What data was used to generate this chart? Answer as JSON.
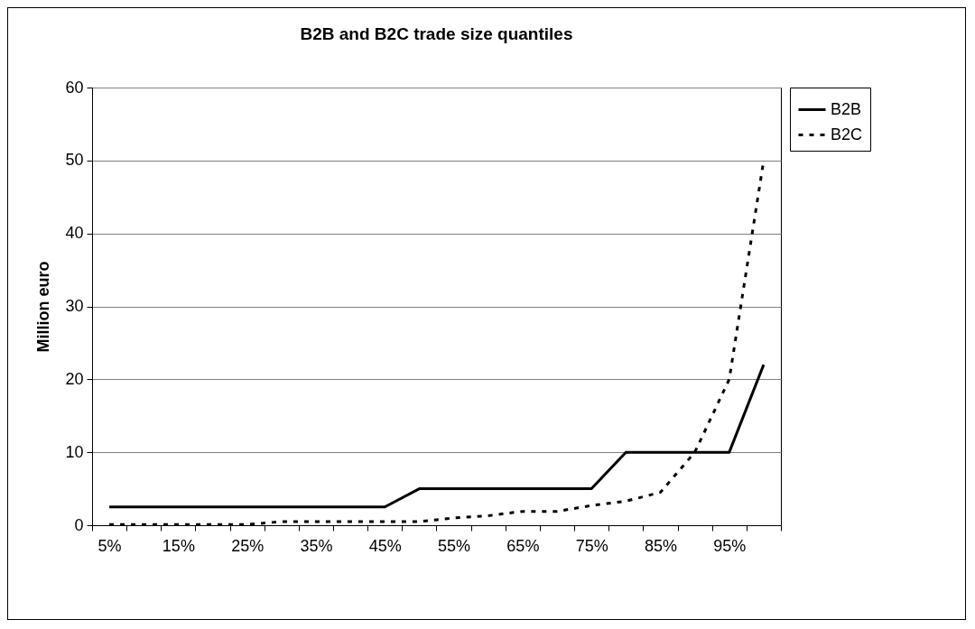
{
  "chart_data": {
    "type": "line",
    "title": "B2B and B2C trade size quantiles",
    "ylabel": "Million euro",
    "categories": [
      "5%",
      null,
      "15%",
      null,
      "25%",
      null,
      "35%",
      null,
      "45%",
      null,
      "55%",
      null,
      "65%",
      null,
      "75%",
      null,
      "85%",
      null,
      "95%",
      null
    ],
    "series": [
      {
        "name": "B2B",
        "color": "#000000",
        "line_style": "solid",
        "values": [
          2.5,
          2.5,
          2.5,
          2.5,
          2.5,
          2.5,
          2.5,
          2.5,
          2.5,
          5,
          5,
          5,
          5,
          5,
          5,
          10,
          10,
          10,
          10,
          22
        ]
      },
      {
        "name": "B2C",
        "color": "#000000",
        "line_style": "dotted",
        "values": [
          0.1,
          0.1,
          0.1,
          0.1,
          0.1,
          0.5,
          0.5,
          0.5,
          0.5,
          0.5,
          1,
          1.3,
          1.9,
          1.9,
          2.7,
          3.3,
          4.5,
          10,
          20,
          50
        ]
      }
    ],
    "ylim": [
      0,
      60
    ],
    "yticks": [
      0,
      10,
      20,
      30,
      40,
      50,
      60
    ],
    "grid": "y",
    "legend": "right",
    "marker": "none"
  }
}
